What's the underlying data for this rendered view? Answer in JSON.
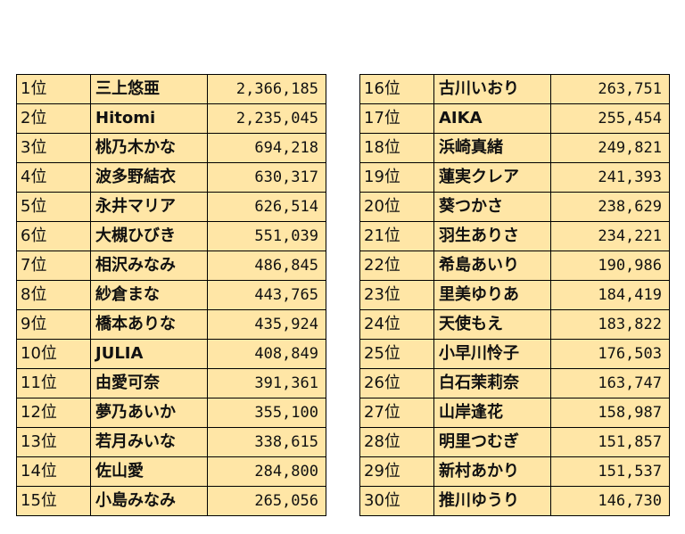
{
  "left_table": [
    {
      "rank": "1位",
      "name": "三上悠亜",
      "value": "2,366,185"
    },
    {
      "rank": "2位",
      "name": "Hitomi",
      "value": "2,235,045"
    },
    {
      "rank": "3位",
      "name": "桃乃木かな",
      "value": "694,218"
    },
    {
      "rank": "4位",
      "name": "波多野結衣",
      "value": "630,317"
    },
    {
      "rank": "5位",
      "name": "永井マリア",
      "value": "626,514"
    },
    {
      "rank": "6位",
      "name": "大槻ひびき",
      "value": "551,039"
    },
    {
      "rank": "7位",
      "name": "相沢みなみ",
      "value": "486,845"
    },
    {
      "rank": "8位",
      "name": "紗倉まな",
      "value": "443,765"
    },
    {
      "rank": "9位",
      "name": "橋本ありな",
      "value": "435,924"
    },
    {
      "rank": "10位",
      "name": "JULIA",
      "value": "408,849"
    },
    {
      "rank": "11位",
      "name": "由愛可奈",
      "value": "391,361"
    },
    {
      "rank": "12位",
      "name": "夢乃あいか",
      "value": "355,100"
    },
    {
      "rank": "13位",
      "name": "若月みいな",
      "value": "338,615"
    },
    {
      "rank": "14位",
      "name": "佐山愛",
      "value": "284,800"
    },
    {
      "rank": "15位",
      "name": "小島みなみ",
      "value": "265,056"
    }
  ],
  "right_table": [
    {
      "rank": "16位",
      "name": "古川いおり",
      "value": "263,751"
    },
    {
      "rank": "17位",
      "name": "AIKA",
      "value": "255,454"
    },
    {
      "rank": "18位",
      "name": "浜崎真緒",
      "value": "249,821"
    },
    {
      "rank": "19位",
      "name": "蓮実クレア",
      "value": "241,393"
    },
    {
      "rank": "20位",
      "name": "葵つかさ",
      "value": "238,629"
    },
    {
      "rank": "21位",
      "name": "羽生ありさ",
      "value": "234,221"
    },
    {
      "rank": "22位",
      "name": "希島あいり",
      "value": "190,986"
    },
    {
      "rank": "23位",
      "name": "里美ゆりあ",
      "value": "184,419"
    },
    {
      "rank": "24位",
      "name": "天使もえ",
      "value": "183,822"
    },
    {
      "rank": "25位",
      "name": "小早川怜子",
      "value": "176,503"
    },
    {
      "rank": "26位",
      "name": "白石茉莉奈",
      "value": "163,747"
    },
    {
      "rank": "27位",
      "name": "山岸逢花",
      "value": "158,987"
    },
    {
      "rank": "28位",
      "name": "明里つむぎ",
      "value": "151,857"
    },
    {
      "rank": "29位",
      "name": "新村あかり",
      "value": "151,537"
    },
    {
      "rank": "30位",
      "name": "推川ゆうり",
      "value": "146,730"
    }
  ],
  "colors": {
    "cell_background": "#FFE6A6",
    "border": "#000000",
    "text": "#111111"
  }
}
